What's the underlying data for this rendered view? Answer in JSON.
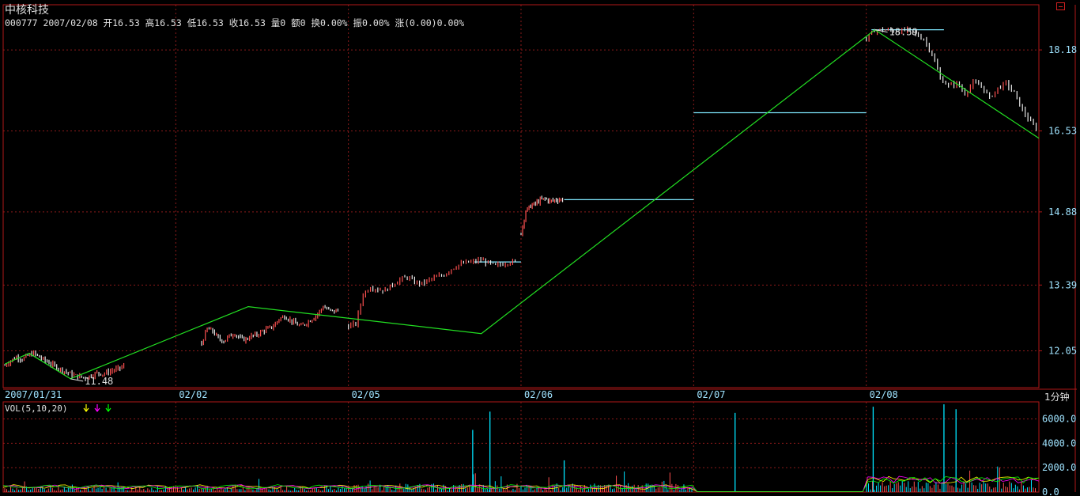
{
  "header": {
    "stock_name": "中核科技",
    "info_line": "000777 2007/02/08 开16.53 高16.53 低16.53 收16.53 量0 额0 换0.00% 振0.00% 涨(0.00)0.00%"
  },
  "corner_icon": "window-restore-icon",
  "timeframe": "1分钟",
  "volume_label": "VOL(5,10,20)",
  "colors": {
    "background": "#000000",
    "border": "#b01818",
    "grid": "#8b1a1a",
    "axis_text": "#9fe3ff",
    "up_bar": "#ff5050",
    "down_bar": "#e8e8e8",
    "trend_line": "#22e022",
    "level_line": "#7fe8ff",
    "ma5": "#ffff00",
    "ma10": "#ff00ff",
    "ma20": "#00ff00",
    "vol_bar": "#00e5ff"
  },
  "chart_data": [
    {
      "type": "line",
      "panel": "price",
      "interval": "1分钟",
      "date_labels": [
        "2007/01/31",
        "02/02",
        "02/05",
        "02/06",
        "02/07",
        "02/08"
      ],
      "y_ticks": [
        12.05,
        13.39,
        14.88,
        16.53,
        18.18
      ],
      "ylim": [
        11.3,
        19.1
      ],
      "annotations": [
        {
          "label": "11.48",
          "value": 11.48
        },
        {
          "label": "18.59",
          "value": 18.59
        }
      ],
      "price_series": [
        {
          "day": "2007/01/31",
          "close": [
            11.75,
            11.85,
            11.92,
            11.88,
            11.95,
            12.0,
            11.92,
            11.85,
            11.78,
            11.72,
            11.65,
            11.6,
            11.55,
            11.52,
            11.5,
            11.55,
            11.6,
            11.58,
            11.62,
            11.66,
            11.7,
            11.75
          ]
        },
        {
          "day": "02/02",
          "close": [
            12.2,
            12.5,
            12.45,
            12.3,
            12.25,
            12.35,
            12.4,
            12.3,
            12.28,
            12.35,
            12.38,
            12.45,
            12.5,
            12.55,
            12.7,
            12.75,
            12.68,
            12.6,
            12.55,
            12.62,
            12.7,
            12.8,
            12.95,
            12.88,
            12.85,
            12.9
          ]
        },
        {
          "day": "02/05",
          "close": [
            12.55,
            12.6,
            13.2,
            13.35,
            13.3,
            13.28,
            13.4,
            13.5,
            13.55,
            13.45,
            13.42,
            13.5,
            13.55,
            13.6,
            13.72,
            13.8,
            13.85,
            13.86,
            13.9,
            13.84,
            13.78,
            13.82,
            13.86,
            13.86
          ]
        },
        {
          "day": "02/06",
          "close": [
            14.45,
            14.9,
            15.0,
            15.05,
            15.12,
            15.15,
            15.1,
            15.12,
            15.13,
            15.13
          ]
        },
        {
          "day": "02/07",
          "close": [
            16.9,
            16.9
          ]
        },
        {
          "day": "02/08",
          "close": [
            18.4,
            18.58,
            18.59,
            18.58,
            18.55,
            18.59,
            18.5,
            18.4,
            18.1,
            17.6,
            17.45,
            17.5,
            17.3,
            17.5,
            17.45,
            17.2,
            17.4,
            17.5,
            17.3,
            16.95,
            16.7,
            16.53
          ]
        }
      ],
      "level_lines": [
        {
          "day": "02/05",
          "value": 13.86
        },
        {
          "day": "02/06",
          "value": 15.13
        },
        {
          "day": "02/07",
          "value": 16.9
        },
        {
          "day": "02/08",
          "value": 18.59
        }
      ],
      "trend_line": [
        {
          "day": "2007/01/31",
          "value": 11.78
        },
        {
          "day": "2007/01/31",
          "value": 12.0
        },
        {
          "day": "2007/01/31",
          "value": 11.48
        },
        {
          "day": "02/02",
          "value": 12.95
        },
        {
          "day": "02/05",
          "value": 12.4
        },
        {
          "day": "02/08",
          "value": 18.59
        },
        {
          "day": "02/08",
          "value": 16.38
        }
      ]
    },
    {
      "type": "bar",
      "panel": "volume",
      "name": "VOL(5,10,20)",
      "y_ticks": [
        0.0,
        2000.0,
        4000.0,
        6000.0
      ],
      "ylim": [
        0,
        7400
      ],
      "spikes": [
        {
          "day": "02/05",
          "value": 5100
        },
        {
          "day": "02/05",
          "value": 6600
        },
        {
          "day": "02/06",
          "value": 2600
        },
        {
          "day": "02/07",
          "value": 6500
        },
        {
          "day": "02/08",
          "value": 7000
        },
        {
          "day": "02/08",
          "value": 7200
        },
        {
          "day": "02/08",
          "value": 6800
        }
      ]
    }
  ]
}
